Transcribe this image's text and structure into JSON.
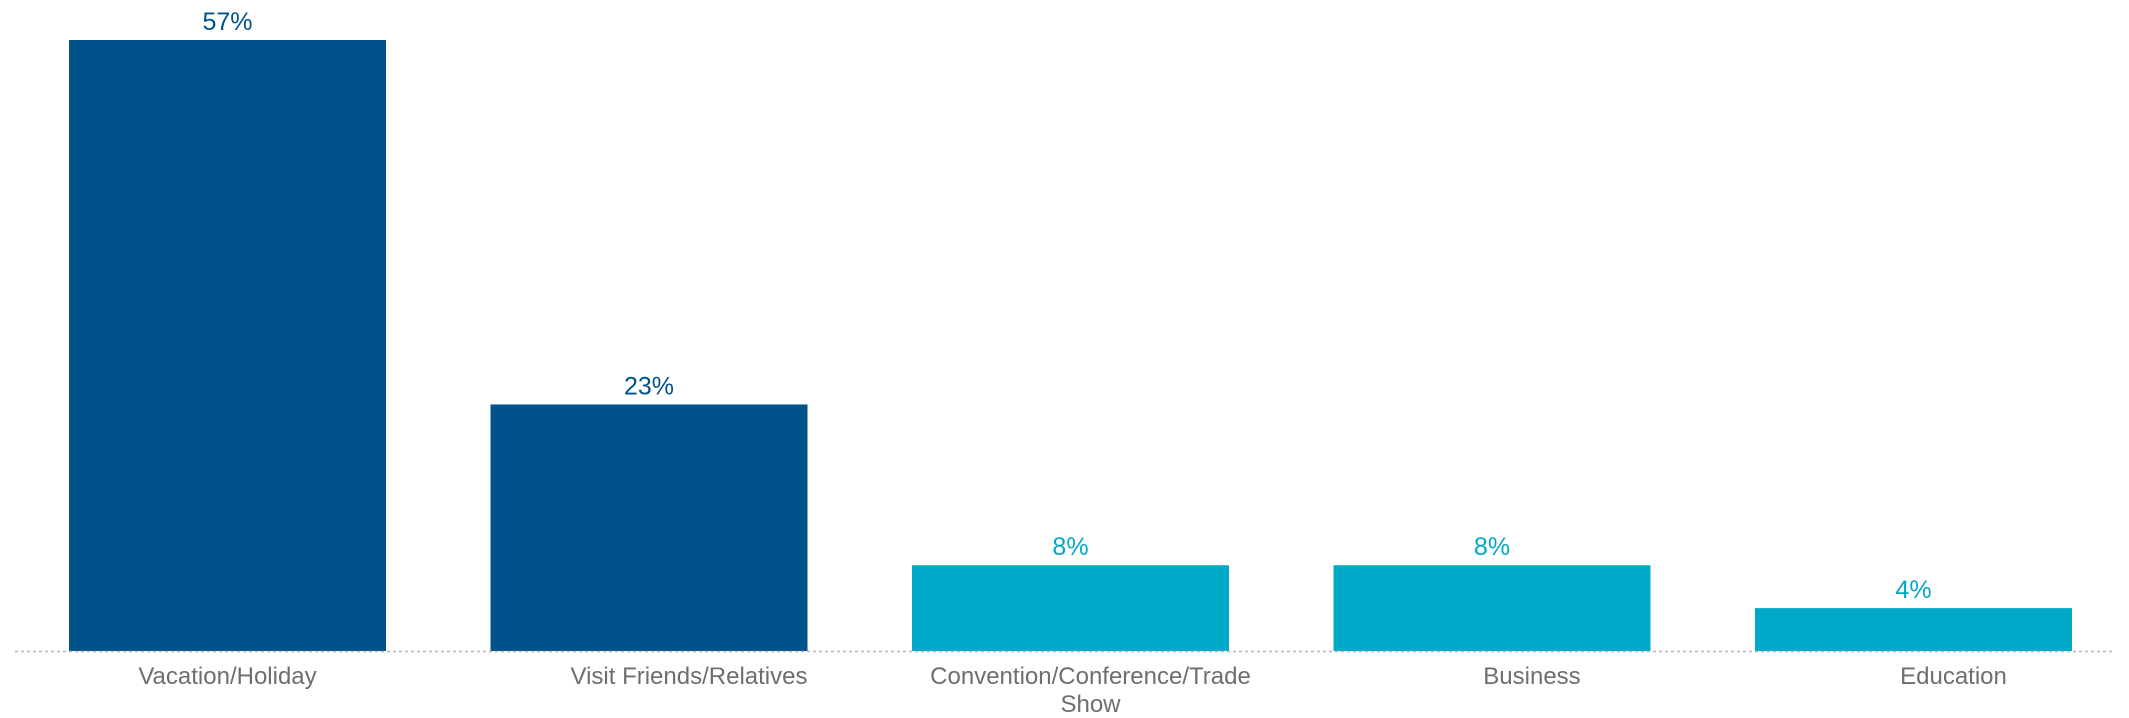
{
  "chart_data": {
    "type": "bar",
    "categories": [
      "Vacation/Holiday",
      "Visit Friends/Relatives",
      "Convention/Conference/Trade Show",
      "Business",
      "Education"
    ],
    "category_lines": [
      [
        "Vacation/Holiday"
      ],
      [
        "Visit Friends/Relatives"
      ],
      [
        "Convention/Conference/Trade",
        "Show"
      ],
      [
        "Business"
      ],
      [
        "Education"
      ]
    ],
    "values": [
      57,
      23,
      8,
      8,
      4
    ],
    "value_labels": [
      "57%",
      "23%",
      "8%",
      "8%",
      "4%"
    ],
    "title": "",
    "xlabel": "",
    "ylabel": "",
    "ylim": [
      0,
      57
    ],
    "grid": false,
    "legend": "none",
    "colors": {
      "primary": "#00538a",
      "secondary": "#00a9c7",
      "baseline": "#b5b5b5",
      "tick_text": "#6e6e6e"
    },
    "bar_colors": [
      "#00538a",
      "#00538a",
      "#00a9c7",
      "#00a9c7",
      "#00a9c7"
    ]
  }
}
